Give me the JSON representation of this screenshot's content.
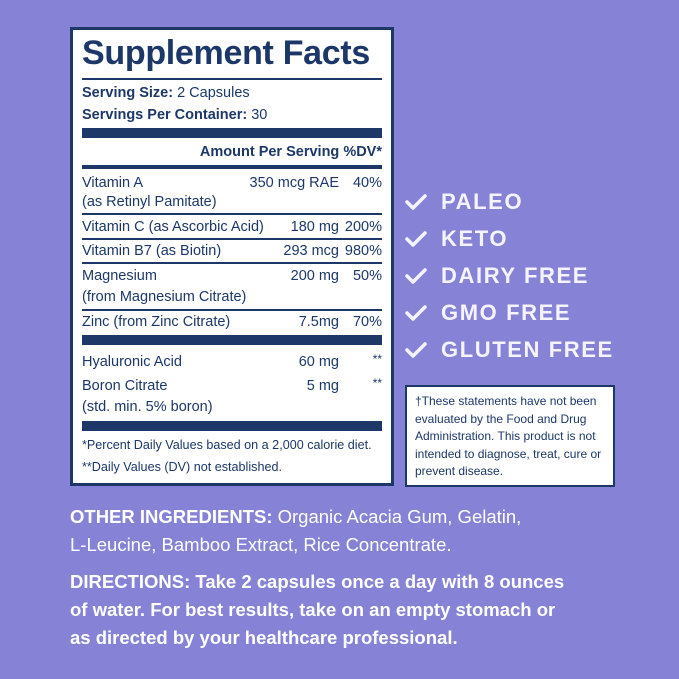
{
  "facts": {
    "title": "Supplement Facts",
    "serving_size_label": "Serving Size:",
    "serving_size_value": "2 Capsules",
    "servings_label": "Servings Per Container:",
    "servings_value": "30",
    "header": "Amount Per Serving %DV*",
    "rows": [
      {
        "name": "Vitamin A",
        "sub": "(as Retinyl Pamitate)",
        "amount": "350 mcg RAE",
        "dv": "40%"
      },
      {
        "name": "Vitamin C (as Ascorbic Acid)",
        "amount": "180 mg",
        "dv": "200%"
      },
      {
        "name": "Vitamin B7 (as Biotin)",
        "amount": "293 mcg",
        "dv": "980%"
      },
      {
        "name": "Magnesium",
        "sub": "(from Magnesium Citrate)",
        "amount": "200 mg",
        "dv": "50%"
      },
      {
        "name": "Zinc (from Zinc Citrate)",
        "amount": "7.5mg",
        "dv": "70%"
      },
      {
        "name": "Hyaluronic Acid",
        "amount": "60 mg",
        "dv": "**"
      },
      {
        "name": "Boron Citrate",
        "sub": "(std. min. 5% boron)",
        "amount": "5 mg",
        "dv": "**"
      }
    ],
    "footnote1": "*Percent Daily Values based on a 2,000 calorie diet.",
    "footnote2": "**Daily Values (DV) not established."
  },
  "claims": [
    "PALEO",
    "KETO",
    "DAIRY FREE",
    "GMO FREE",
    "GLUTEN FREE"
  ],
  "claim_icon": "checkmark-icon",
  "disclaimer": "†These statements have not been evaluated by the Food and Drug Administration. This product is not intended to diagnose, treat, cure or prevent disease.",
  "other_ingredients": {
    "label": "OTHER INGREDIENTS:",
    "line1": "Organic Acacia Gum, Gelatin,",
    "line2": "L-Leucine, Bamboo Extract, Rice Concentrate."
  },
  "directions": {
    "line1": "DIRECTIONS: Take 2 capsules once a day with 8 ounces",
    "line2": "of water. For best results, take on an empty stomach or",
    "line3": "as directed by your healthcare professional."
  },
  "colors": {
    "background": "#8683d6",
    "navy": "#1c3768",
    "white": "#ffffff"
  }
}
